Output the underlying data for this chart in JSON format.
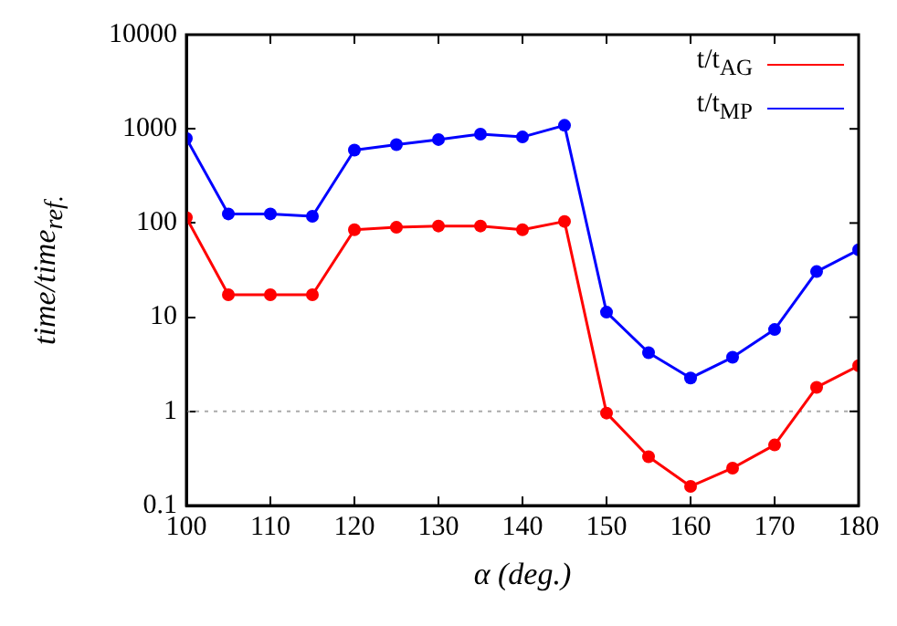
{
  "chart_data": {
    "type": "line",
    "xlabel": "α (deg.)",
    "ylabel": "time/time$_{ref.}$",
    "x": [
      100,
      105,
      110,
      115,
      120,
      125,
      130,
      135,
      140,
      145,
      150,
      155,
      160,
      165,
      170,
      175,
      180
    ],
    "series": [
      {
        "name": "t/t$_{AG}$",
        "color": "#ff0000",
        "values": [
          114,
          17.3,
          17.3,
          17.3,
          85,
          90,
          93,
          93,
          85,
          104,
          0.96,
          0.33,
          0.16,
          0.25,
          0.44,
          1.8,
          3.05
        ]
      },
      {
        "name": "t/t$_{MP}$",
        "color": "#0000ff",
        "values": [
          790,
          125,
          125,
          118,
          594,
          680,
          770,
          880,
          820,
          1090,
          11.3,
          4.2,
          2.26,
          3.75,
          7.4,
          30.5,
          52
        ]
      }
    ],
    "log": "y",
    "xlim": [
      100,
      180
    ],
    "xticks": [
      100,
      110,
      120,
      130,
      140,
      150,
      160,
      170,
      180
    ],
    "ylim": [
      0.1,
      10000
    ],
    "yticks": [
      0.1,
      1,
      10,
      100,
      1000,
      10000
    ],
    "ref_lines": [
      {
        "axis": "y",
        "value": 1,
        "color": "#aaaaaa",
        "line_style": "dotted"
      }
    ],
    "marker": "circle",
    "line_style": "solid",
    "grid": false,
    "legend": "top right"
  }
}
